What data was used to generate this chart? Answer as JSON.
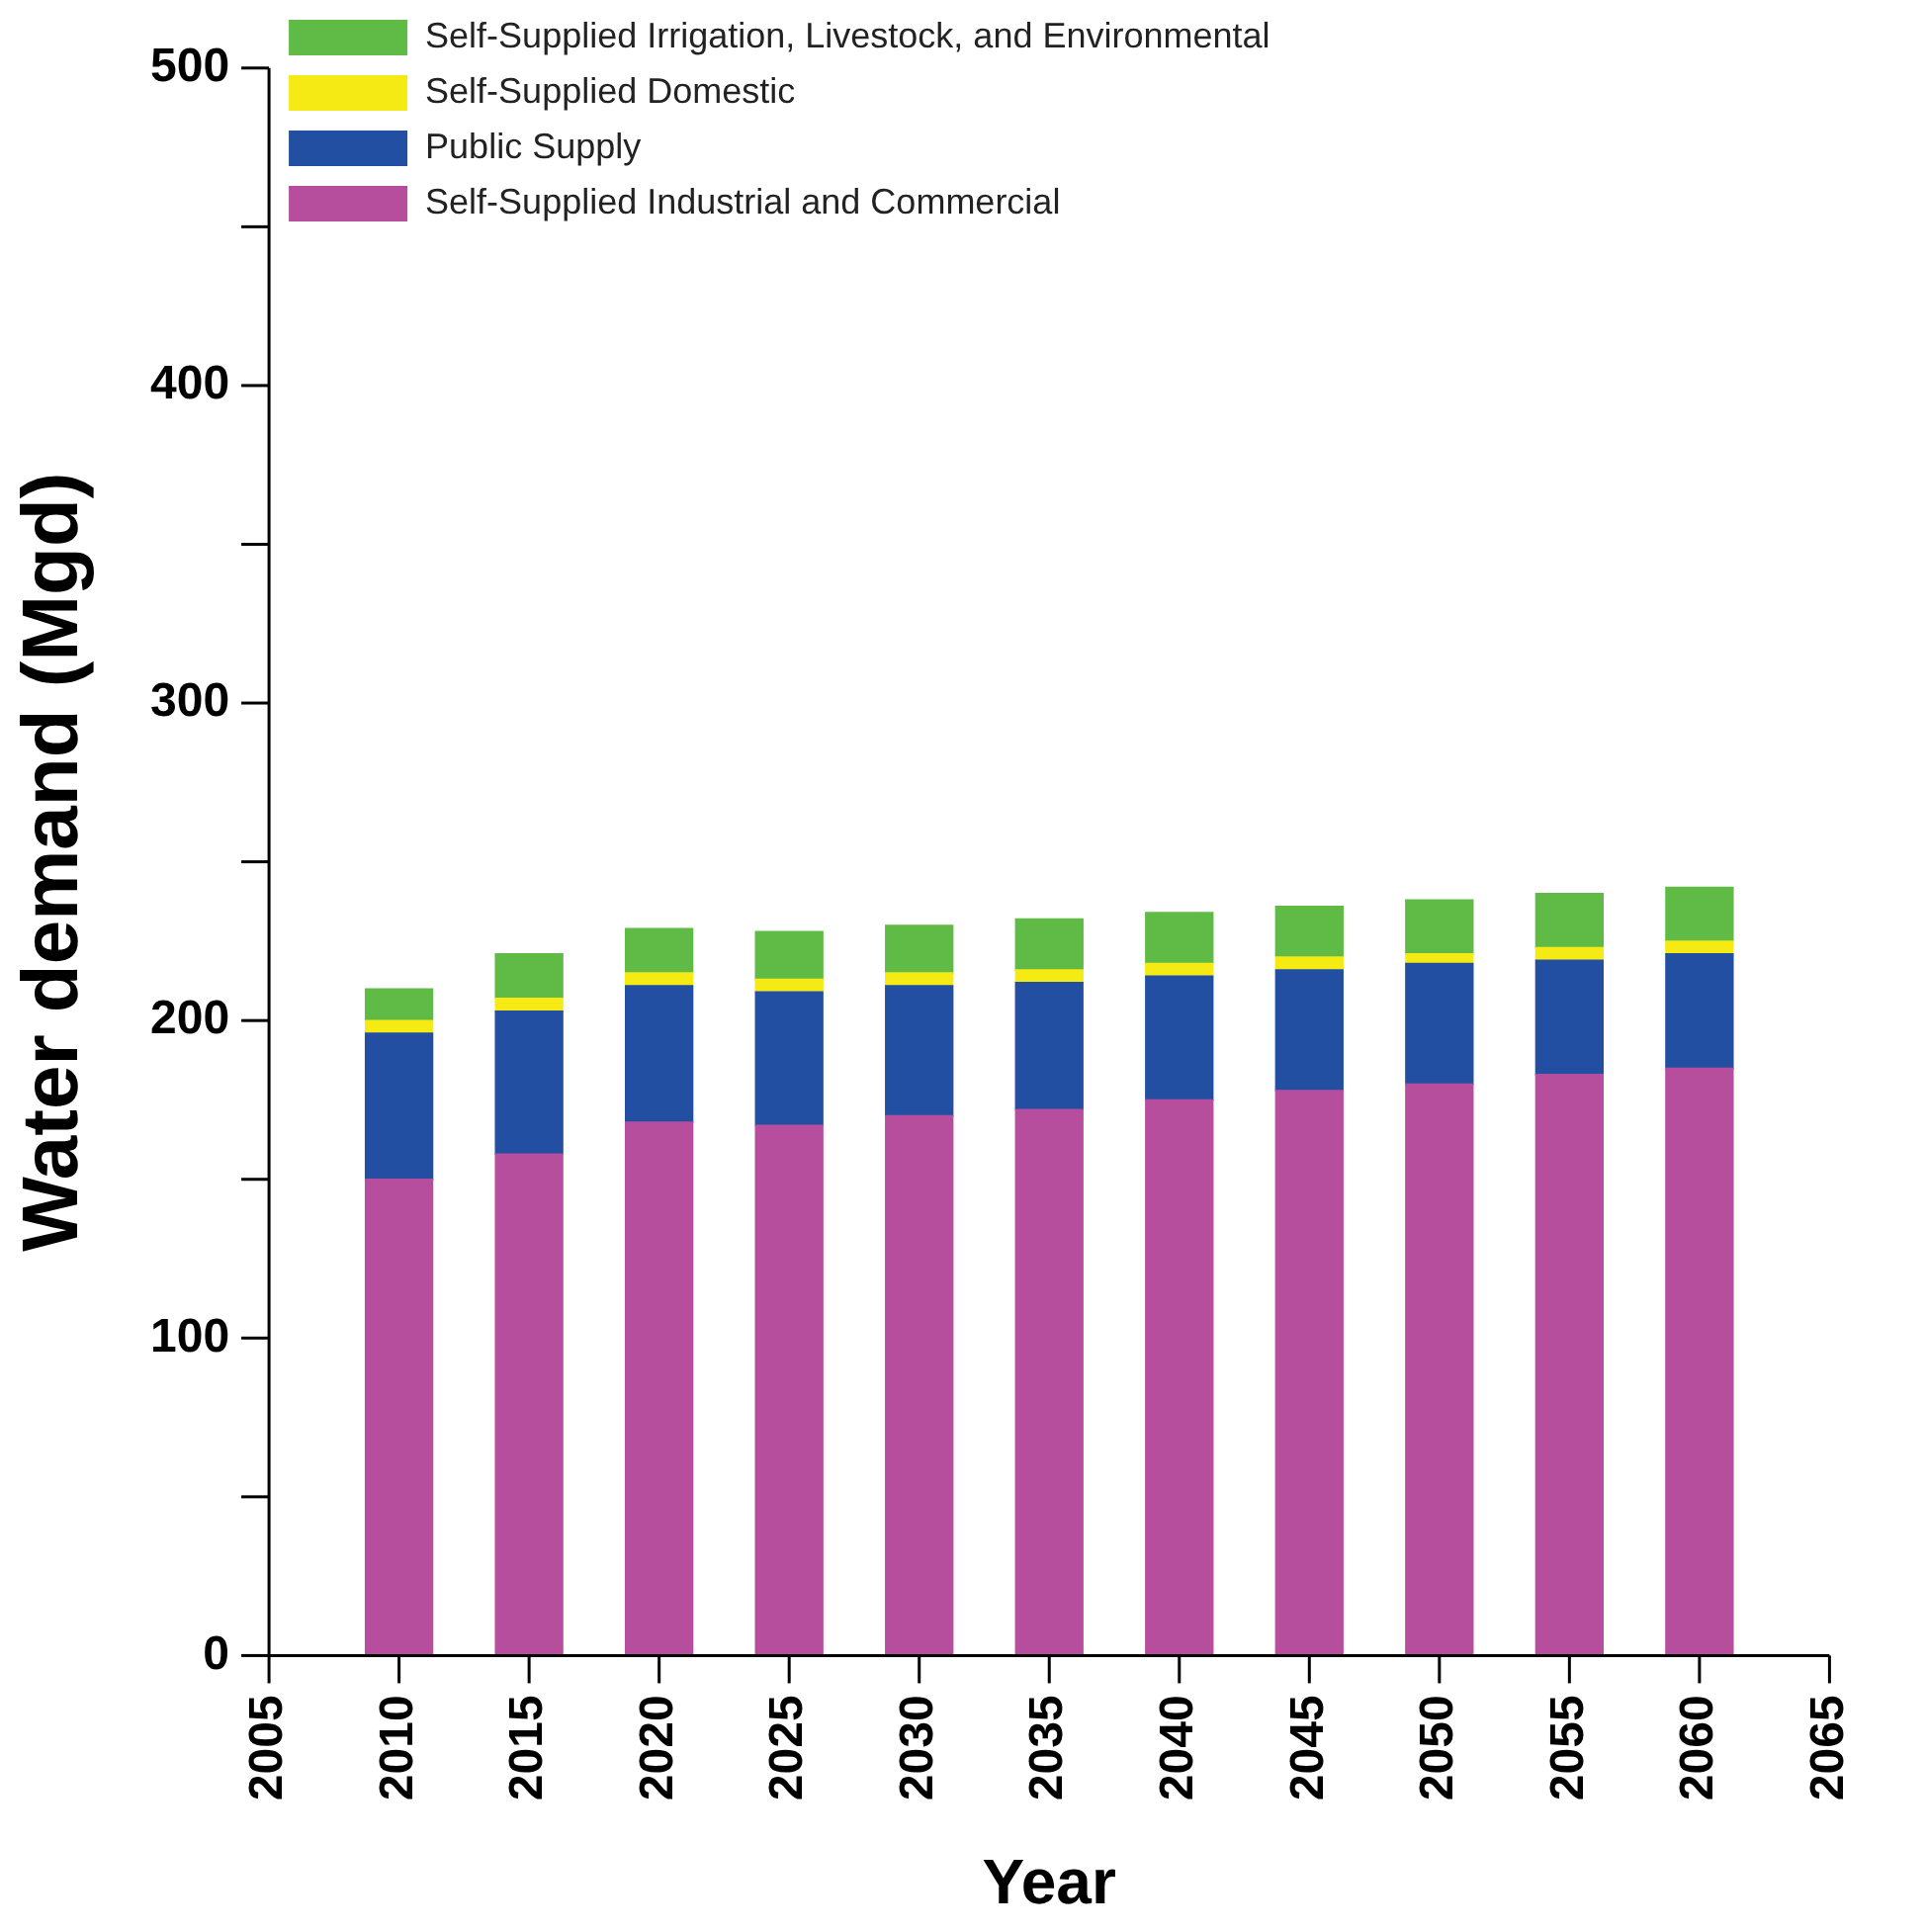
{
  "chart_data": {
    "type": "bar",
    "stacked": true,
    "xlabel": "Year",
    "ylabel": "Water demand (Mgd)",
    "x": [
      2010,
      2015,
      2020,
      2025,
      2030,
      2035,
      2040,
      2045,
      2050,
      2055,
      2060
    ],
    "xlim": [
      2005,
      2065
    ],
    "xticks": [
      2005,
      2010,
      2015,
      2020,
      2025,
      2030,
      2035,
      2040,
      2045,
      2050,
      2055,
      2060,
      2065
    ],
    "ylim": [
      0,
      500
    ],
    "yticks": [
      0,
      {
        "value": 50,
        "label": null
      },
      100,
      {
        "value": 150,
        "label": null
      },
      200,
      {
        "value": 250,
        "label": null
      },
      300,
      {
        "value": 350,
        "label": null
      },
      400,
      {
        "value": 450,
        "label": null
      },
      500
    ],
    "grid": false,
    "legend": "top left",
    "series": [
      {
        "name": "Self-Supplied Industrial and Commercial",
        "color": "#b64d9d",
        "values": [
          150,
          158,
          168,
          167,
          170,
          172,
          175,
          178,
          180,
          183,
          185
        ]
      },
      {
        "name": "Public Supply",
        "color": "#234fa3",
        "values": [
          46,
          45,
          43,
          42,
          41,
          40,
          39,
          38,
          38,
          36,
          36
        ]
      },
      {
        "name": "Self-Supplied Domestic",
        "color": "#f5ea14",
        "values": [
          4,
          4,
          4,
          4,
          4,
          4,
          4,
          4,
          3,
          4,
          4
        ]
      },
      {
        "name": "Self-Supplied Irrigation, Livestock, and Environmental",
        "color": "#5fbb46",
        "values": [
          10,
          14,
          14,
          15,
          15,
          16,
          16,
          16,
          17,
          17,
          17
        ]
      }
    ]
  }
}
